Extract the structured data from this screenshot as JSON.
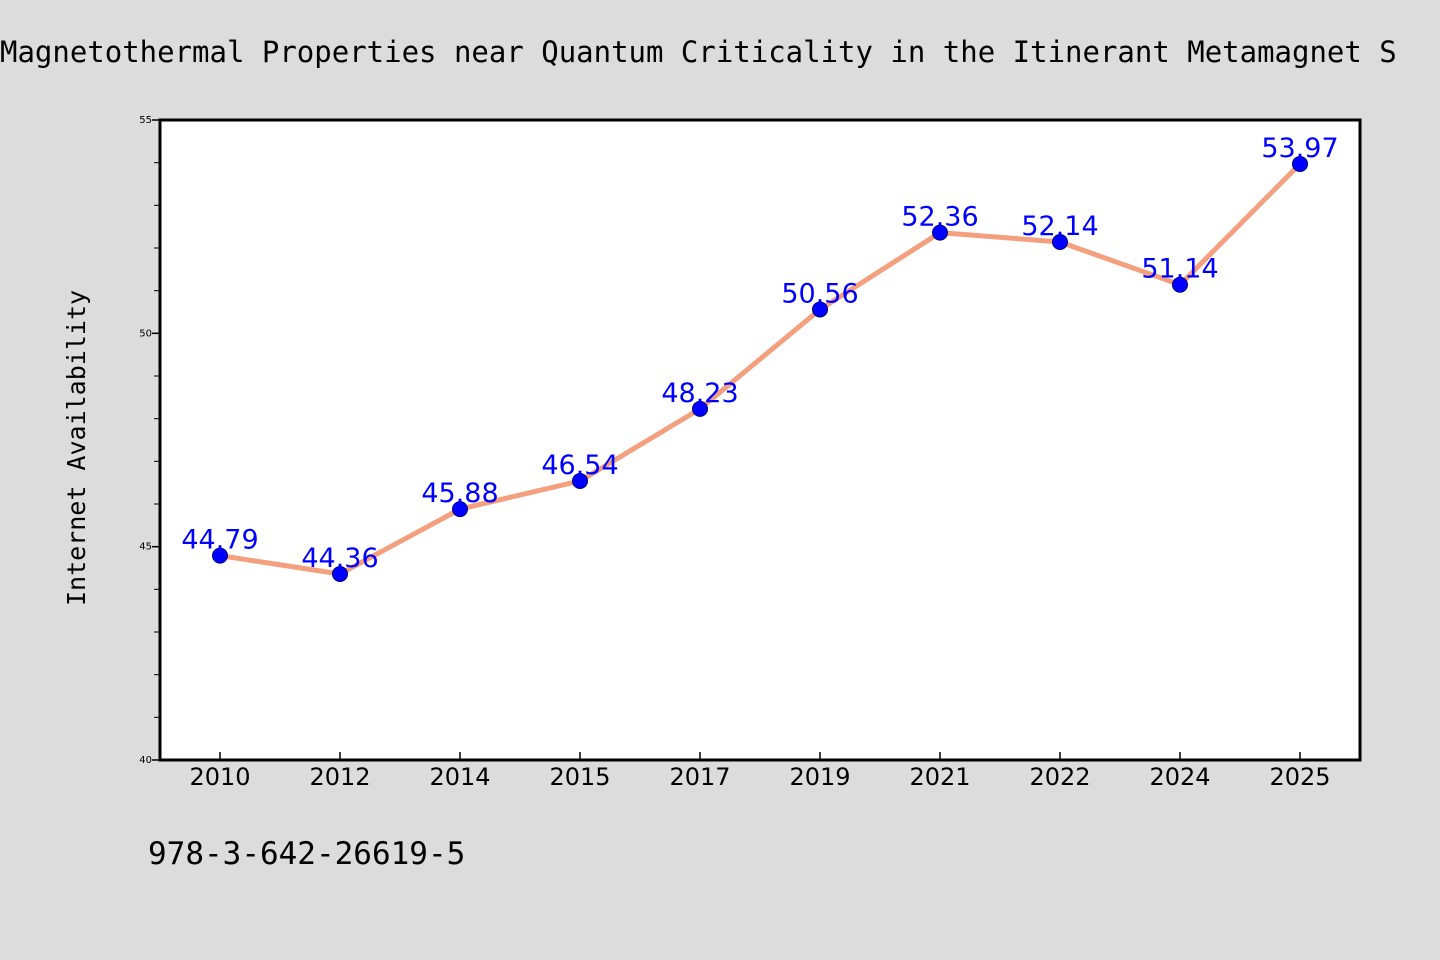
{
  "header": {
    "title": "Magnetothermal Properties near Quantum Criticality in the Itinerant Metamagnet S"
  },
  "footer": {
    "isbn": "978-3-642-26619-5"
  },
  "colors": {
    "background": "#dcdcdc",
    "plot_background": "#ffffff",
    "line": "#f4a07e",
    "marker": "#0000ff",
    "data_label": "#0000ff",
    "axis": "#000000"
  },
  "chart_data": {
    "type": "line",
    "title": "Magnetothermal Properties near Quantum Criticality in the Itinerant Metamagnet S",
    "xlabel": "",
    "ylabel": "Internet Availability",
    "categories": [
      "2010",
      "2012",
      "2014",
      "2015",
      "2017",
      "2019",
      "2021",
      "2022",
      "2024",
      "2025"
    ],
    "series": [
      {
        "values": [
          44.79,
          44.36,
          45.88,
          46.54,
          48.23,
          50.56,
          52.36,
          52.14,
          51.14,
          53.97
        ],
        "labels": [
          "44.79",
          "44.36",
          "45.88",
          "46.54",
          "48.23",
          "50.56",
          "52.36",
          "52.14",
          "51.14",
          "53.97"
        ]
      }
    ],
    "ylim": [
      40,
      55
    ],
    "y_major_ticks": [
      40,
      45,
      50,
      55
    ],
    "y_major_tick_labels": [
      "40",
      "45",
      "50",
      "55"
    ],
    "y_minor_step": 1,
    "grid": false,
    "legend": "none"
  }
}
